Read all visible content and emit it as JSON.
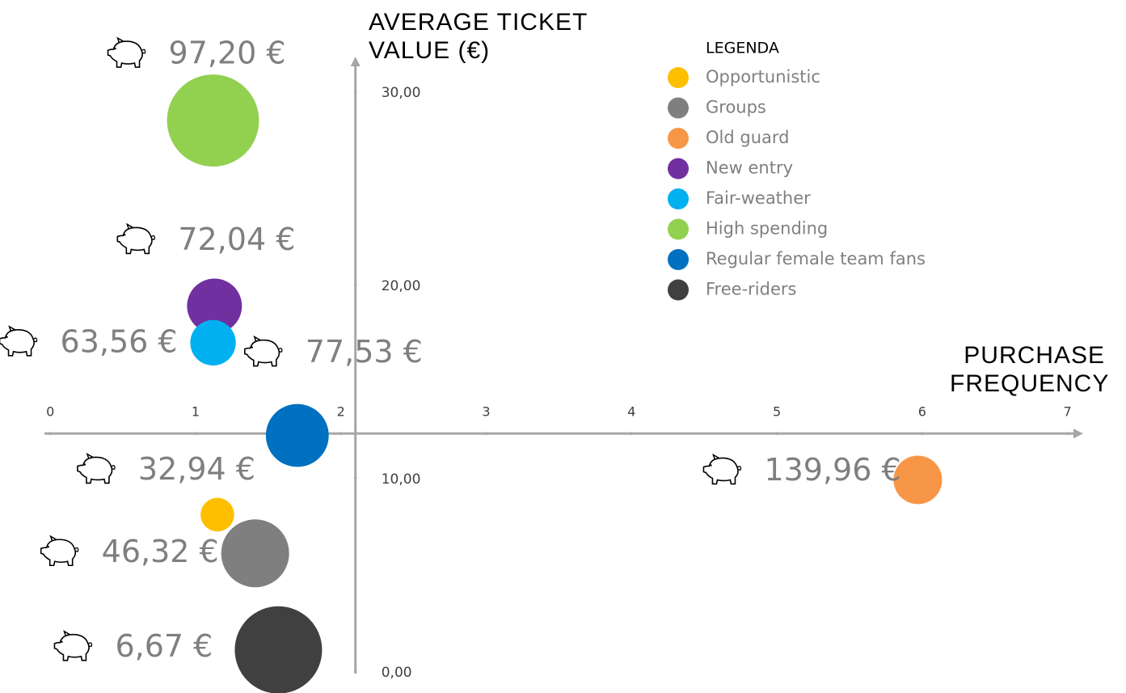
{
  "chart_data": {
    "type": "bubble",
    "y_label": "AVERAGE TICKET VALUE (€)",
    "x_label": "PURCHASE FREQUENCY",
    "legend_title": "LEGENDA",
    "xlim": [
      -0.04,
      7.08
    ],
    "ylim": [
      0,
      31.6
    ],
    "xticks": [
      0,
      1,
      2,
      3,
      4,
      5,
      6,
      7
    ],
    "yticks": [
      {
        "value": 0,
        "label": "0,00"
      },
      {
        "value": 10,
        "label": "10,00"
      },
      {
        "value": 20,
        "label": "20,00"
      },
      {
        "value": 30,
        "label": "30,00"
      }
    ],
    "xaxis_crossing": 12.3,
    "yaxis_crossing": 2.1,
    "legend": "top-right",
    "series": [
      {
        "name": "Opportunistic",
        "color": "#fdbf00",
        "x": [
          1.15
        ],
        "y": [
          8.1
        ],
        "sizes": [
          12
        ],
        "spend": [
          32.94
        ],
        "spend_labels": [
          "32,94 €"
        ]
      },
      {
        "name": "Groups",
        "color": "#7f7f7f",
        "x": [
          1.41
        ],
        "y": [
          6.1
        ],
        "sizes": [
          49
        ],
        "spend": [
          46.32
        ],
        "spend_labels": [
          "46,32 €"
        ]
      },
      {
        "name": "Old guard",
        "color": "#f79646",
        "x": [
          5.97
        ],
        "y": [
          9.9
        ],
        "sizes": [
          25
        ],
        "spend": [
          139.96
        ],
        "spend_labels": [
          "139,96 €"
        ]
      },
      {
        "name": "New entry",
        "color": "#7030a0",
        "x": [
          1.13
        ],
        "y": [
          18.9
        ],
        "sizes": [
          32
        ],
        "spend": [
          72.04
        ],
        "spend_labels": [
          "72,04 €"
        ]
      },
      {
        "name": "Fair-weather",
        "color": "#00b0f0",
        "x": [
          1.12
        ],
        "y": [
          17.0
        ],
        "sizes": [
          22
        ],
        "spend": [
          63.56
        ],
        "spend_labels": [
          "63,56 €"
        ]
      },
      {
        "name": "High spending",
        "color": "#92d050",
        "x": [
          1.12
        ],
        "y": [
          28.5
        ],
        "sizes": [
          90
        ],
        "spend": [
          97.2
        ],
        "spend_labels": [
          "97,20 €"
        ]
      },
      {
        "name": "Regular female team fans",
        "color": "#0070c0",
        "x": [
          1.7
        ],
        "y": [
          12.2
        ],
        "sizes": [
          42
        ],
        "spend": [
          77.53
        ],
        "spend_labels": [
          "77,53 €"
        ]
      },
      {
        "name": "Free-riders",
        "color": "#404040",
        "x": [
          1.57
        ],
        "y": [
          1.1
        ],
        "sizes": [
          81
        ],
        "spend": [
          6.67
        ],
        "spend_labels": [
          "6,67 €"
        ]
      }
    ]
  }
}
